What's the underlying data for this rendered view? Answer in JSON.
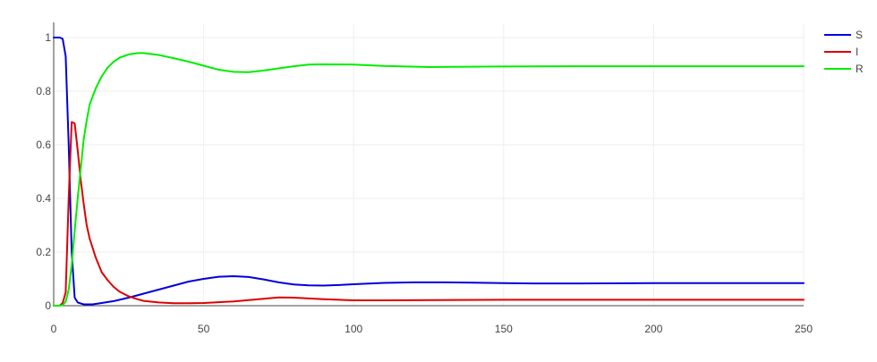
{
  "chart_data": {
    "type": "line",
    "title": "",
    "xlabel": "",
    "ylabel": "",
    "xlim": [
      0,
      250
    ],
    "ylim": [
      0,
      1.05
    ],
    "x_ticks": [
      0,
      50,
      100,
      150,
      200,
      250
    ],
    "y_ticks": [
      0,
      0.2,
      0.4,
      0.6,
      0.8,
      1
    ],
    "x_tick_labels": [
      "0",
      "50",
      "100",
      "150",
      "200",
      "250"
    ],
    "y_tick_labels": [
      "0",
      "0.2",
      "0.4",
      "0.6",
      "0.8",
      "1"
    ],
    "grid": true,
    "legend_position": "top-right",
    "series": [
      {
        "name": "S",
        "color": "#0000dd",
        "points": [
          [
            0,
            1.0
          ],
          [
            2,
            1.0
          ],
          [
            3,
            0.995
          ],
          [
            4,
            0.93
          ],
          [
            5,
            0.6
          ],
          [
            6,
            0.2
          ],
          [
            7,
            0.03
          ],
          [
            8,
            0.012
          ],
          [
            10,
            0.005
          ],
          [
            13,
            0.005
          ],
          [
            16,
            0.01
          ],
          [
            20,
            0.017
          ],
          [
            25,
            0.03
          ],
          [
            30,
            0.045
          ],
          [
            35,
            0.06
          ],
          [
            40,
            0.075
          ],
          [
            45,
            0.09
          ],
          [
            50,
            0.1
          ],
          [
            55,
            0.108
          ],
          [
            60,
            0.11
          ],
          [
            65,
            0.107
          ],
          [
            70,
            0.098
          ],
          [
            75,
            0.087
          ],
          [
            80,
            0.079
          ],
          [
            85,
            0.076
          ],
          [
            90,
            0.075
          ],
          [
            95,
            0.077
          ],
          [
            100,
            0.08
          ],
          [
            110,
            0.085
          ],
          [
            120,
            0.087
          ],
          [
            130,
            0.087
          ],
          [
            140,
            0.086
          ],
          [
            150,
            0.084
          ],
          [
            160,
            0.083
          ],
          [
            175,
            0.083
          ],
          [
            200,
            0.084
          ],
          [
            225,
            0.084
          ],
          [
            250,
            0.084
          ]
        ]
      },
      {
        "name": "I",
        "color": "#dd0000",
        "points": [
          [
            0,
            0.0
          ],
          [
            2,
            0.0
          ],
          [
            3,
            0.01
          ],
          [
            4,
            0.05
          ],
          [
            5,
            0.4
          ],
          [
            6,
            0.685
          ],
          [
            7,
            0.68
          ],
          [
            8,
            0.58
          ],
          [
            9,
            0.47
          ],
          [
            10,
            0.38
          ],
          [
            11,
            0.3
          ],
          [
            12,
            0.25
          ],
          [
            14,
            0.18
          ],
          [
            16,
            0.125
          ],
          [
            18,
            0.095
          ],
          [
            20,
            0.07
          ],
          [
            22,
            0.052
          ],
          [
            25,
            0.035
          ],
          [
            28,
            0.024
          ],
          [
            30,
            0.018
          ],
          [
            35,
            0.012
          ],
          [
            40,
            0.009
          ],
          [
            45,
            0.009
          ],
          [
            50,
            0.01
          ],
          [
            55,
            0.013
          ],
          [
            60,
            0.016
          ],
          [
            65,
            0.021
          ],
          [
            70,
            0.026
          ],
          [
            75,
            0.031
          ],
          [
            80,
            0.03
          ],
          [
            85,
            0.027
          ],
          [
            90,
            0.024
          ],
          [
            95,
            0.022
          ],
          [
            100,
            0.02
          ],
          [
            110,
            0.02
          ],
          [
            125,
            0.021
          ],
          [
            150,
            0.022
          ],
          [
            175,
            0.022
          ],
          [
            200,
            0.022
          ],
          [
            225,
            0.022
          ],
          [
            250,
            0.022
          ]
        ]
      },
      {
        "name": "R",
        "color": "#00ee00",
        "points": [
          [
            0,
            0.0
          ],
          [
            2,
            0.0
          ],
          [
            3,
            0.002
          ],
          [
            4,
            0.015
          ],
          [
            5,
            0.06
          ],
          [
            6,
            0.15
          ],
          [
            7,
            0.28
          ],
          [
            8,
            0.4
          ],
          [
            9,
            0.51
          ],
          [
            10,
            0.62
          ],
          [
            11,
            0.69
          ],
          [
            12,
            0.75
          ],
          [
            14,
            0.81
          ],
          [
            16,
            0.855
          ],
          [
            18,
            0.888
          ],
          [
            20,
            0.91
          ],
          [
            22,
            0.925
          ],
          [
            25,
            0.937
          ],
          [
            28,
            0.942
          ],
          [
            30,
            0.942
          ],
          [
            35,
            0.935
          ],
          [
            40,
            0.923
          ],
          [
            45,
            0.91
          ],
          [
            50,
            0.895
          ],
          [
            55,
            0.88
          ],
          [
            60,
            0.872
          ],
          [
            65,
            0.871
          ],
          [
            70,
            0.877
          ],
          [
            75,
            0.885
          ],
          [
            80,
            0.893
          ],
          [
            85,
            0.899
          ],
          [
            90,
            0.9
          ],
          [
            100,
            0.899
          ],
          [
            110,
            0.894
          ],
          [
            125,
            0.89
          ],
          [
            150,
            0.892
          ],
          [
            175,
            0.893
          ],
          [
            200,
            0.893
          ],
          [
            225,
            0.893
          ],
          [
            250,
            0.893
          ]
        ]
      }
    ]
  }
}
